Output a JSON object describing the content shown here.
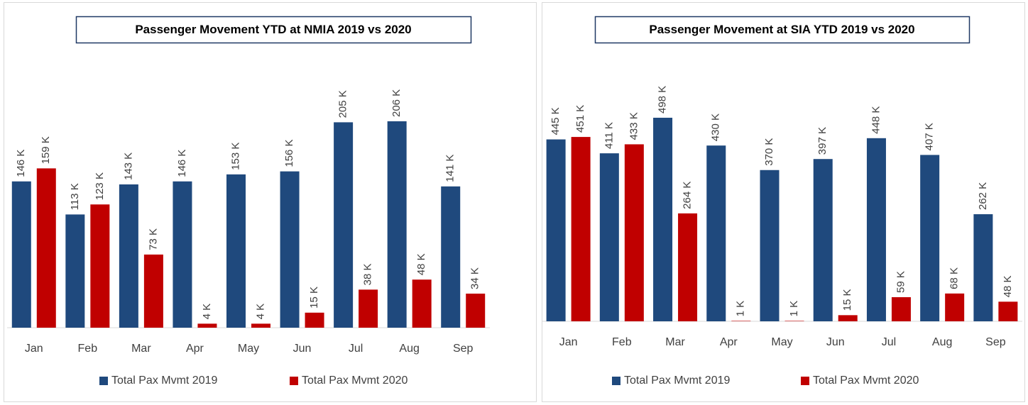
{
  "chart_data": [
    {
      "type": "bar",
      "title": "Passenger Movement YTD at NMIA 2019 vs 2020",
      "categories": [
        "Jan",
        "Feb",
        "Mar",
        "Apr",
        "May",
        "Jun",
        "Jul",
        "Aug",
        "Sep"
      ],
      "series": [
        {
          "name": "Total Pax Mvmt 2019",
          "color": "#1f497d",
          "values": [
            146,
            113,
            143,
            146,
            153,
            156,
            205,
            206,
            141
          ],
          "value_labels": [
            "146 K",
            "113 K",
            "143 K",
            "146 K",
            "153 K",
            "156 K",
            "205 K",
            "206 K",
            "141 K"
          ]
        },
        {
          "name": "Total Pax Mvmt 2020",
          "color": "#c00000",
          "values": [
            159,
            123,
            73,
            4,
            4,
            15,
            38,
            48,
            34
          ],
          "value_labels": [
            "159 K",
            "123 K",
            "73 K",
            "4 K",
            "4 K",
            "15 K",
            "38 K",
            "48 K",
            "34 K"
          ]
        }
      ],
      "legend": "bottom"
    },
    {
      "type": "bar",
      "title": "Passenger Movement at SIA YTD 2019 vs 2020",
      "categories": [
        "Jan",
        "Feb",
        "Mar",
        "Apr",
        "May",
        "Jun",
        "Jul",
        "Aug",
        "Sep"
      ],
      "series": [
        {
          "name": "Total Pax Mvmt 2019",
          "color": "#1f497d",
          "values": [
            445,
            411,
            498,
            430,
            370,
            397,
            448,
            407,
            262
          ],
          "value_labels": [
            "445 K",
            "411 K",
            "498 K",
            "430 K",
            "370 K",
            "397 K",
            "448 K",
            "407 K",
            "262 K"
          ]
        },
        {
          "name": "Total Pax Mvmt 2020",
          "color": "#c00000",
          "values": [
            451,
            433,
            264,
            1,
            1,
            15,
            59,
            68,
            48
          ],
          "value_labels": [
            "451 K",
            "433 K",
            "264 K",
            "1 K",
            "1 K",
            "15 K",
            "59 K",
            "68 K",
            "48 K"
          ]
        }
      ],
      "legend": "bottom"
    }
  ]
}
